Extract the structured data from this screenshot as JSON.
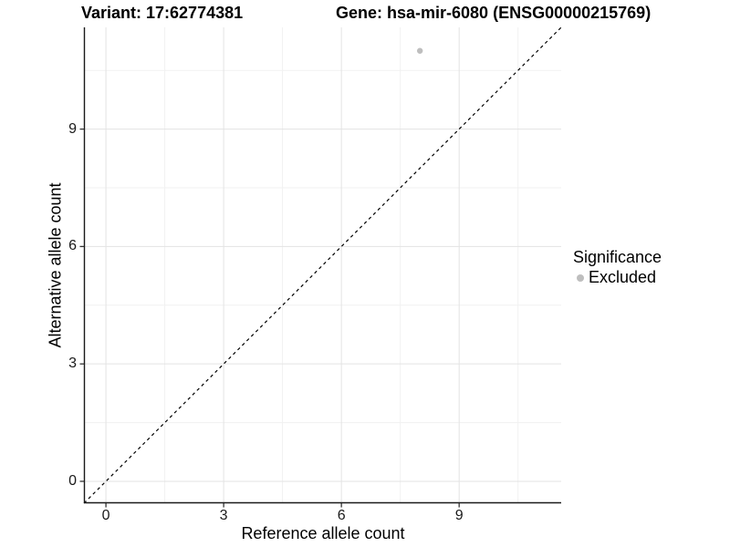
{
  "titles": {
    "variant": "Variant: 17:62774381",
    "gene": "Gene: hsa-mir-6080 (ENSG00000215769)"
  },
  "legend": {
    "title": "Significance",
    "items": [
      {
        "label": "Excluded",
        "color": "#bebebe",
        "marker": "dot"
      }
    ]
  },
  "colors": {
    "background": "#ffffff",
    "grid_major": "#e3e3e3",
    "grid_minor": "#f1f1f1",
    "axis_line": "#1a1a1a",
    "tick_mark": "#333333",
    "reference_line": "#000000",
    "text": "#000000"
  },
  "chart_data": {
    "type": "scatter",
    "title": "Variant: 17:62774381   Gene: hsa-mir-6080 (ENSG00000215769)",
    "xlabel": "Reference allele count",
    "ylabel": "Alternative allele count",
    "xlim": [
      -0.56,
      11.6
    ],
    "ylim": [
      -0.56,
      11.6
    ],
    "x_ticks": [
      0,
      3,
      6,
      9
    ],
    "y_ticks": [
      0,
      3,
      6,
      9
    ],
    "x_minor_ticks": [
      1.5,
      4.5,
      7.5,
      10.5
    ],
    "y_minor_ticks": [
      1.5,
      4.5,
      7.5,
      10.5
    ],
    "grid": true,
    "legend_position": "right",
    "series": [
      {
        "name": "Excluded",
        "color": "#bebebe",
        "marker_radius": 3.2,
        "points": [
          {
            "x": 8,
            "y": 11
          }
        ]
      }
    ],
    "reference_line": {
      "type": "abline",
      "intercept": 0,
      "slope": 1,
      "style": "dashed",
      "color": "#000000"
    }
  }
}
